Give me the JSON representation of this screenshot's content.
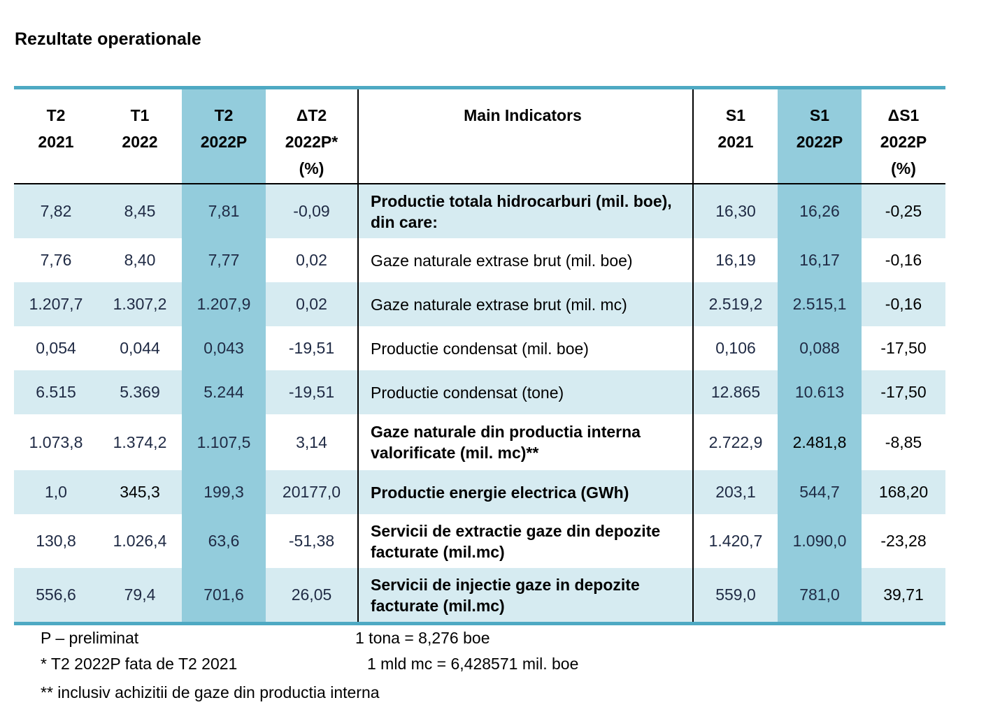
{
  "title": "Rezultate operationale",
  "headers": [
    [
      "T2",
      "2021"
    ],
    [
      "T1",
      "2022"
    ],
    [
      "T2",
      "2022P"
    ],
    [
      "ΔT2",
      "2022P*",
      "(%)"
    ],
    [
      "Main Indicators"
    ],
    [
      "S1",
      "2021"
    ],
    [
      "S1",
      "2022P"
    ],
    [
      "ΔS1",
      "2022P",
      "(%)"
    ]
  ],
  "rows": [
    {
      "indicator": "Productie totala hidrocarburi (mil. boe), din care:",
      "bold": true,
      "values": [
        "7,82",
        "8,45",
        "7,81",
        "-0,09",
        "16,30",
        "16,26",
        "-0,25"
      ]
    },
    {
      "indicator": "Gaze naturale extrase brut (mil. boe)",
      "bold": false,
      "values": [
        "7,76",
        "8,40",
        "7,77",
        "0,02",
        "16,19",
        "16,17",
        "-0,16"
      ]
    },
    {
      "indicator": "Gaze naturale extrase brut (mil. mc)",
      "bold": false,
      "values": [
        "1.207,7",
        "1.307,2",
        "1.207,9",
        "0,02",
        "2.519,2",
        "2.515,1",
        "-0,16"
      ]
    },
    {
      "indicator": "Productie condensat (mil. boe)",
      "bold": false,
      "values": [
        "0,054",
        "0,044",
        "0,043",
        "-19,51",
        "0,106",
        "0,088",
        "-17,50"
      ]
    },
    {
      "indicator": "Productie condensat (tone)",
      "bold": false,
      "values": [
        "6.515",
        "5.369",
        "5.244",
        "-19,51",
        "12.865",
        "10.613",
        "-17,50"
      ]
    },
    {
      "indicator": "Gaze naturale din productia interna valorificate (mil. mc)**",
      "bold": true,
      "values": [
        "1.073,8",
        "1.374,2",
        "1.107,5",
        "3,14",
        "2.722,9",
        "2.481,8",
        "-8,85"
      ]
    },
    {
      "indicator": "Productie energie electrica (GWh)",
      "bold": true,
      "values": [
        "1,0",
        "345,3",
        "199,3",
        "20177,0",
        "203,1",
        "544,7",
        "168,20"
      ]
    },
    {
      "indicator": "Servicii de extractie gaze din depozite facturate (mil.mc)",
      "bold": true,
      "values": [
        "130,8",
        "1.026,4",
        "63,6",
        "-51,38",
        "1.420,7",
        "1.090,0",
        "-23,28"
      ]
    },
    {
      "indicator": "Servicii de injectie gaze in depozite facturate (mil.mc)",
      "bold": true,
      "values": [
        "556,6",
        "79,4",
        "701,6",
        "26,05",
        "559,0",
        "781,0",
        "39,71"
      ]
    }
  ],
  "notes": {
    "preliminary": "P – preliminat",
    "t2_comparison": "* T2 2022P fata de T2 2021",
    "domestic": "** inclusiv achizitii de gaze din productia interna",
    "tona": "1 tona = 8,276 boe",
    "mld_mc": "1 mld mc = 6,428571 mil. boe"
  },
  "colors": {
    "accent_line": "#4ea9c3",
    "highlight_column": "#93ccdc",
    "row_tint": "#d6ebf1"
  }
}
